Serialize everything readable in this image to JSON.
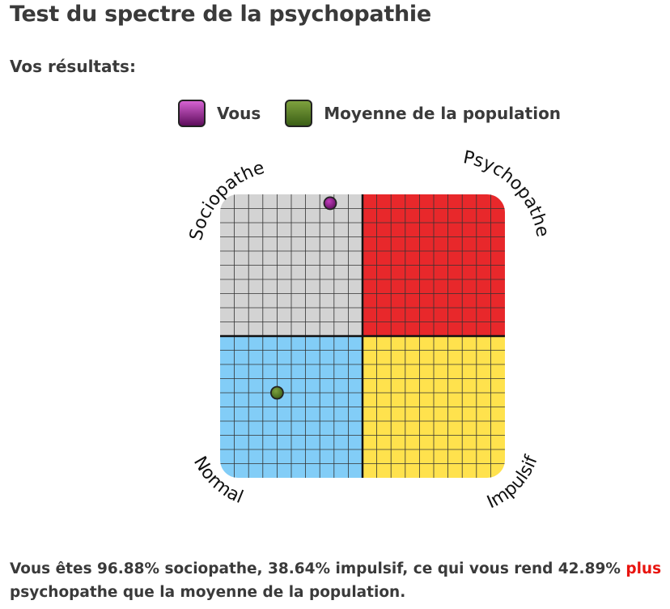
{
  "page": {
    "title": "Test du spectre de la psychopathie",
    "subtitle": "Vos résultats:"
  },
  "legend": {
    "you": {
      "label": "Vous",
      "color": "#7a1a78"
    },
    "average": {
      "label": "Moyenne de la population",
      "color": "#4f7a26"
    }
  },
  "chart_data": {
    "type": "scatter",
    "x_axis": {
      "name": "Impulsif",
      "range": [
        0,
        100
      ]
    },
    "y_axis": {
      "name": "Sociopathe",
      "range": [
        0,
        100
      ]
    },
    "quadrants": [
      {
        "label": "Sociopathe",
        "position": "top-left",
        "color": "#d3d3d3"
      },
      {
        "label": "Psychopathe",
        "position": "top-right",
        "color": "#e8282b"
      },
      {
        "label": "Normal",
        "position": "bottom-left",
        "color": "#82cdf7"
      },
      {
        "label": "Impulsif",
        "position": "bottom-right",
        "color": "#ffe24d"
      }
    ],
    "points": [
      {
        "series": "Vous",
        "x": 38.64,
        "y": 96.88,
        "color": "#7a1a78"
      },
      {
        "series": "Moyenne de la population",
        "x": 20,
        "y": 30,
        "color": "#4f7a26"
      }
    ],
    "grid": true
  },
  "result": {
    "part1": "Vous êtes 96.88% sociopathe, 38.64% impulsif, ce qui vous rend 42.89%",
    "highlight": "plus",
    "part2": "psychopathe que la moyenne de la population."
  }
}
